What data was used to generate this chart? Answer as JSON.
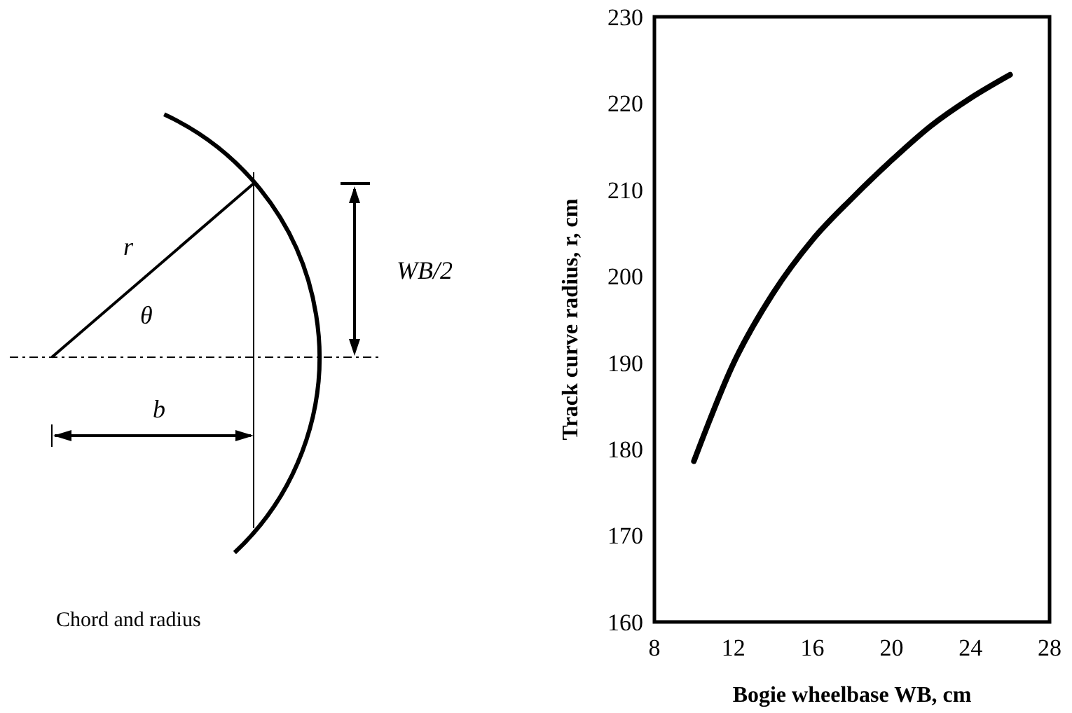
{
  "chart_data": [
    {
      "type": "other",
      "annotations": [
        "r",
        "θ",
        "WB/2",
        "b",
        "Chord and radius"
      ]
    },
    {
      "type": "line",
      "xlabel": "Bogie wheelbase WB, cm",
      "ylabel": "Track curve radius, r, cm",
      "x": [
        10,
        12,
        14,
        16,
        18,
        20,
        22,
        24,
        26
      ],
      "series": [
        {
          "color": "#000000",
          "values": [
            178.6,
            189.9,
            198,
            204.2,
            209,
            213.4,
            217.4,
            220.6,
            223.3
          ]
        }
      ],
      "xlim": [
        8,
        28
      ],
      "xticks": [
        8,
        12,
        16,
        20,
        24,
        28
      ],
      "ylim": [
        160,
        230
      ],
      "yticks": [
        160,
        170,
        180,
        190,
        200,
        210,
        220,
        230
      ],
      "marker": "none",
      "line_style": "solid"
    }
  ]
}
